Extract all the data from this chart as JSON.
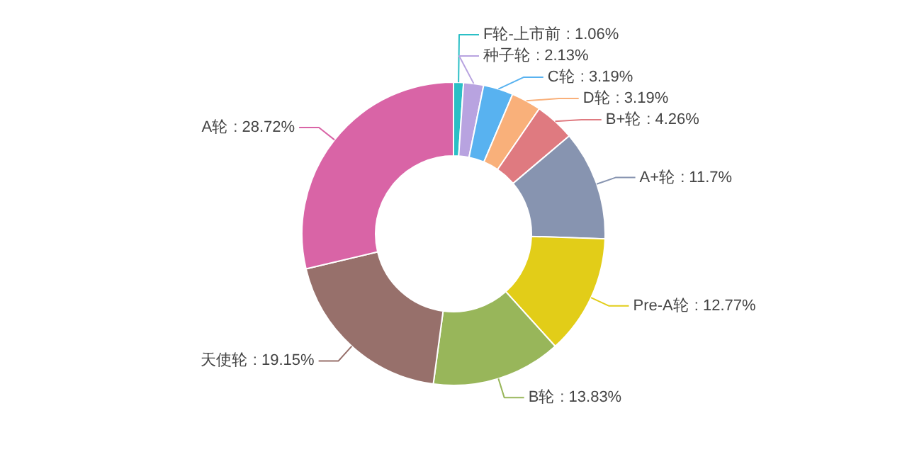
{
  "chart_data": {
    "type": "donut",
    "categories": [
      "F轮-上市前",
      "种子轮",
      "C轮",
      "D轮",
      "B+轮",
      "A+轮",
      "Pre-A轮",
      "B轮",
      "天使轮",
      "A轮"
    ],
    "values": [
      1.06,
      2.13,
      3.19,
      3.19,
      4.26,
      11.7,
      12.77,
      13.83,
      19.15,
      28.72
    ],
    "value_labels": [
      ": 1.06%",
      ": 2.13%",
      ": 3.19%",
      ": 3.19%",
      ": 4.26%",
      ": 11.7%",
      ": 12.77%",
      ": 13.83%",
      ": 19.15%",
      ": 28.72%"
    ],
    "colors": [
      "#2bbfc6",
      "#b8a3e0",
      "#58b2f0",
      "#f9b07a",
      "#df7a80",
      "#8794b0",
      "#e2cd18",
      "#98b65a",
      "#97706b",
      "#d964a6"
    ]
  }
}
